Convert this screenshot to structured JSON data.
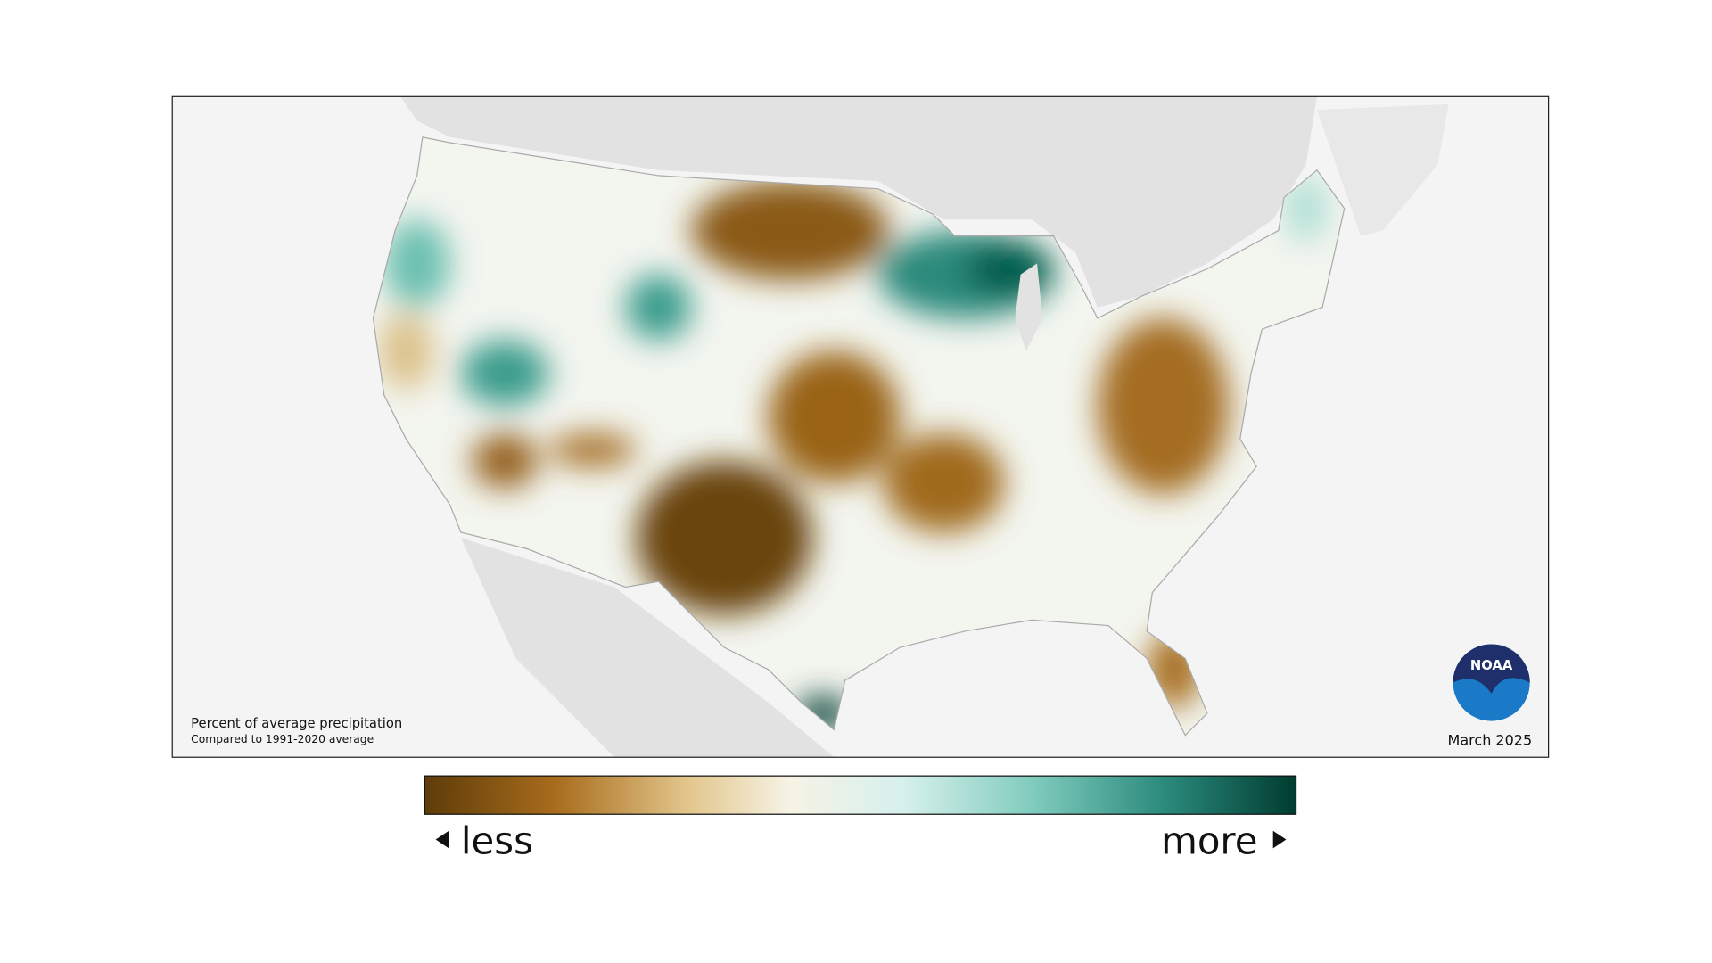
{
  "map": {
    "legend_title": "Percent of average precipitation",
    "legend_subtitle": "Compared to 1991-2020 average",
    "date": "March 2025",
    "logo": "NOAA"
  },
  "colorbar": {
    "low_label": "less",
    "high_label": "more"
  }
}
